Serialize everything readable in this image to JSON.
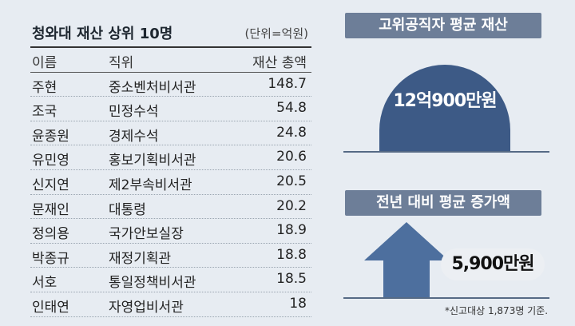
{
  "table": {
    "title": "청와대 재산 상위 10명",
    "unit": "(단위=억원)",
    "headers": {
      "name": "이름",
      "position": "직위",
      "value": "재산 총액"
    },
    "rows": [
      {
        "name": "주현",
        "position": "중소벤처비서관",
        "value": "148.7"
      },
      {
        "name": "조국",
        "position": "민정수석",
        "value": "54.8"
      },
      {
        "name": "윤종원",
        "position": "경제수석",
        "value": "24.8"
      },
      {
        "name": "유민영",
        "position": "홍보기획비서관",
        "value": "20.6"
      },
      {
        "name": "신지연",
        "position": "제2부속비서관",
        "value": "20.5"
      },
      {
        "name": "문재인",
        "position": "대통령",
        "value": "20.2"
      },
      {
        "name": "정의용",
        "position": "국가안보실장",
        "value": "18.9"
      },
      {
        "name": "박종규",
        "position": "재정기획관",
        "value": "18.8"
      },
      {
        "name": "서호",
        "position": "통일정책비서관",
        "value": "18.5"
      },
      {
        "name": "인태연",
        "position": "자영업비서관",
        "value": "18"
      }
    ]
  },
  "avg_assets": {
    "title": "고위공직자 평균 재산",
    "value": "12억900만원"
  },
  "avg_increase": {
    "title": "전년 대비 평균 증가액",
    "value": "5,900만원"
  },
  "footnote": "*신고대상 1,873명 기준.",
  "colors": {
    "pill": "#6d7e98",
    "navy": "#3d5a86",
    "arrow": "#4d6f9e",
    "background": "#e7ecf2"
  },
  "chart_data": {
    "type": "table",
    "title": "청와대 재산 상위 10명",
    "unit": "억원",
    "columns": [
      "이름",
      "직위",
      "재산 총액"
    ],
    "rows": [
      [
        "주현",
        "중소벤처비서관",
        148.7
      ],
      [
        "조국",
        "민정수석",
        54.8
      ],
      [
        "윤종원",
        "경제수석",
        24.8
      ],
      [
        "유민영",
        "홍보기획비서관",
        20.6
      ],
      [
        "신지연",
        "제2부속비서관",
        20.5
      ],
      [
        "문재인",
        "대통령",
        20.2
      ],
      [
        "정의용",
        "국가안보실장",
        18.9
      ],
      [
        "박종규",
        "재정기획관",
        18.8
      ],
      [
        "서호",
        "통일정책비서관",
        18.5
      ],
      [
        "인태연",
        "자영업비서관",
        18
      ]
    ]
  }
}
